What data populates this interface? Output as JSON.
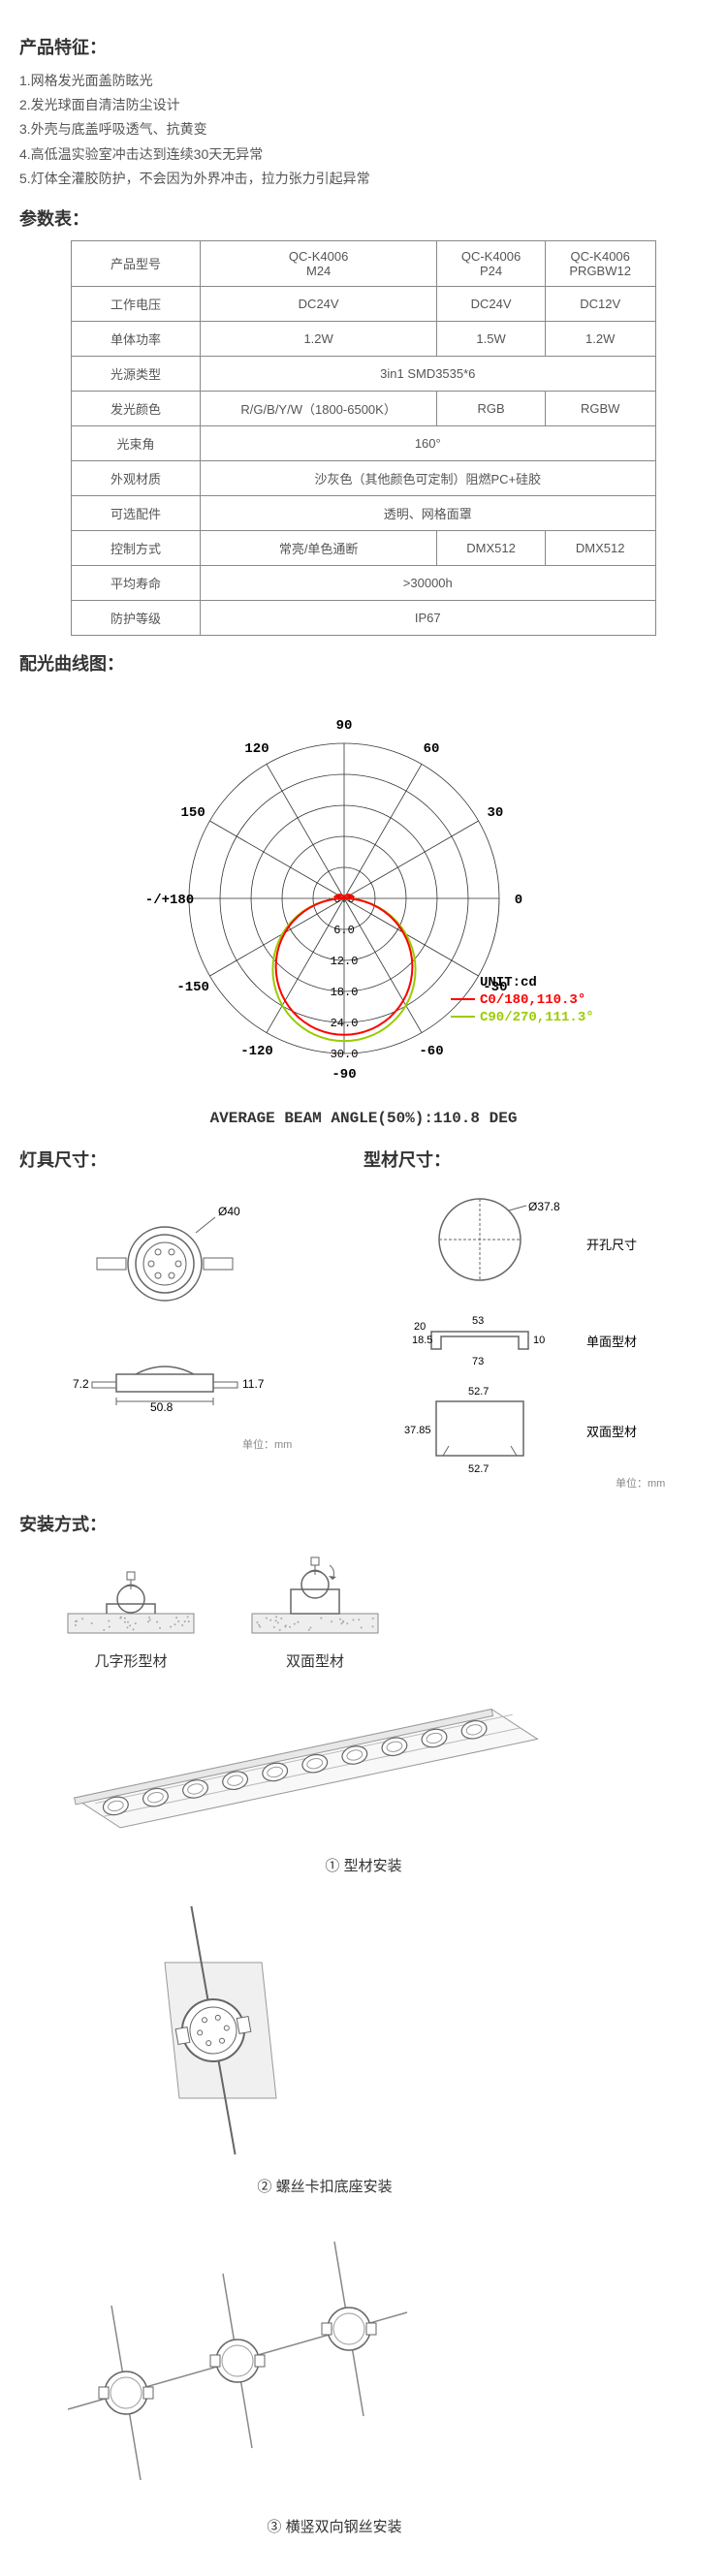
{
  "features": {
    "title": "产品特征：",
    "items": [
      "1.网格发光面盖防眩光",
      "2.发光球面自清洁防尘设计",
      "3.外壳与底盖呼吸透气、抗黄变",
      "4.高低温实验室冲击达到连续30天无异常",
      "5.灯体全灌胶防护，不会因为外界冲击，拉力张力引起异常"
    ]
  },
  "params": {
    "title": "参数表：",
    "rows": [
      {
        "label": "产品型号",
        "cells": [
          "QC-K4006\nM24",
          "QC-K4006\nP24",
          "QC-K4006\nPRGBW12"
        ]
      },
      {
        "label": "工作电压",
        "cells": [
          "DC24V",
          "DC24V",
          "DC12V"
        ]
      },
      {
        "label": "单体功率",
        "cells": [
          "1.2W",
          "1.5W",
          "1.2W"
        ]
      },
      {
        "label": "光源类型",
        "cells": [
          "3in1 SMD3535*6"
        ],
        "span": 3
      },
      {
        "label": "发光颜色",
        "cells": [
          "R/G/B/Y/W（1800-6500K）",
          "RGB",
          "RGBW"
        ]
      },
      {
        "label": "光束角",
        "cells": [
          "160°"
        ],
        "span": 3
      },
      {
        "label": "外观材质",
        "cells": [
          "沙灰色（其他颜色可定制）阻燃PC+硅胶"
        ],
        "span": 3
      },
      {
        "label": "可选配件",
        "cells": [
          "透明、网格面罩"
        ],
        "span": 3
      },
      {
        "label": "控制方式",
        "cells": [
          "常亮/单色通断",
          "DMX512",
          "DMX512"
        ]
      },
      {
        "label": "平均寿命",
        "cells": [
          ">30000h"
        ],
        "span": 3
      },
      {
        "label": "防护等级",
        "cells": [
          "IP67"
        ],
        "span": 3
      }
    ]
  },
  "polar": {
    "title": "配光曲线图：",
    "angles": [
      "-/+180",
      "-150",
      "150",
      "-120",
      "120",
      "-90",
      "90",
      "-60",
      "60",
      "-30",
      "30",
      "0"
    ],
    "rings": [
      "0.0",
      "6.0",
      "12.0",
      "18.0",
      "24.0",
      "30.0"
    ],
    "unit": "UNIT:cd",
    "legend1": "C0/180,110.3°",
    "legend2": "C90/270,111.3°",
    "caption": "AVERAGE  BEAM ANGLE(50%):110.8 DEG",
    "curve_color1": "#ff0000",
    "curve_color2": "#99cc00",
    "grid_color": "#333333",
    "bg": "#ffffff"
  },
  "dims": {
    "fixture_title": "灯具尺寸：",
    "profile_title": "型材尺寸：",
    "d40": "Ø40",
    "w508": "50.8",
    "h117": "11.7",
    "h72": "7.2",
    "unit_mm": "单位：mm",
    "d378": "Ø37.8",
    "hole_label": "开孔尺寸",
    "p53": "53",
    "p73": "73",
    "p185": "18.5",
    "p20": "20",
    "p10": "10",
    "single_label": "单面型材",
    "p527": "52.7",
    "p3785": "37.85",
    "double_label": "双面型材"
  },
  "install": {
    "title": "安装方式：",
    "type1": "几字形型材",
    "type2": "双面型材",
    "step1": "① 型材安装",
    "step2": "② 螺丝卡扣底座安装",
    "step3": "③ 横竖双向钢丝安装"
  }
}
